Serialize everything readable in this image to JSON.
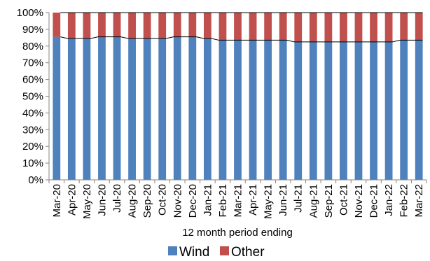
{
  "chart_data": {
    "type": "bar",
    "stacked": true,
    "percent": true,
    "title": "",
    "xlabel": "12 month period ending",
    "ylabel": "",
    "ylim": [
      0,
      100
    ],
    "yticks": [
      "0%",
      "10%",
      "20%",
      "30%",
      "40%",
      "50%",
      "60%",
      "70%",
      "80%",
      "90%",
      "100%"
    ],
    "grid": false,
    "legend_position": "bottom",
    "categories": [
      "Mar-20",
      "Apr-20",
      "May-20",
      "Jun-20",
      "Jul-20",
      "Aug-20",
      "Sep-20",
      "Oct-20",
      "Nov-20",
      "Dec-20",
      "Jan-21",
      "Feb-21",
      "Mar-21",
      "Apr-21",
      "May-21",
      "Jun-21",
      "Jul-21",
      "Aug-21",
      "Sep-21",
      "Oct-21",
      "Nov-21",
      "Dec-21",
      "Jan-22",
      "Feb-22",
      "Mar-22"
    ],
    "series": [
      {
        "name": "Wind",
        "color": "#4f81bd",
        "values": [
          85.5,
          84.5,
          84.5,
          85.5,
          85.5,
          84.5,
          84.5,
          84.5,
          85.5,
          85.5,
          84.5,
          83.5,
          83.5,
          83.5,
          83.5,
          83.5,
          82.5,
          82.5,
          82.5,
          82.5,
          82.5,
          82.5,
          82.5,
          83.5,
          83.5
        ]
      },
      {
        "name": "Other",
        "color": "#c0504d",
        "values": [
          14.5,
          15.5,
          15.5,
          14.5,
          14.5,
          15.5,
          15.5,
          15.5,
          14.5,
          14.5,
          15.5,
          16.5,
          16.5,
          16.5,
          16.5,
          16.5,
          17.5,
          17.5,
          17.5,
          17.5,
          17.5,
          17.5,
          17.5,
          16.5,
          16.5
        ]
      }
    ]
  }
}
